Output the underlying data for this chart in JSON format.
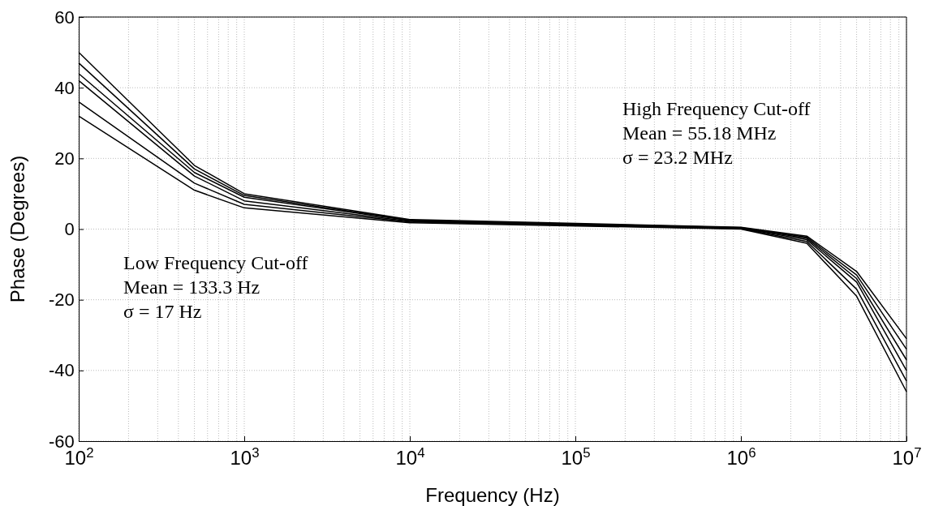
{
  "chart_data": {
    "type": "line",
    "xlabel": "Frequency (Hz)",
    "ylabel": "Phase (Degrees)",
    "log": "x",
    "grid": true,
    "line_style": "solid",
    "marker": "none",
    "x": [
      100,
      500,
      1000,
      10000,
      1000000,
      2500000,
      5000000,
      10000000
    ],
    "xlim": [
      100,
      10000000
    ],
    "ylim": [
      -60,
      60
    ],
    "xticks": [
      {
        "value": 100,
        "label": "10$^{2}$"
      },
      {
        "value": 1000,
        "label": "10$^{3}$"
      },
      {
        "value": 10000,
        "label": "10$^{4}$"
      },
      {
        "value": 100000,
        "label": "10$^{5}$"
      },
      {
        "value": 1000000,
        "label": "10$^{6}$"
      },
      {
        "value": 10000000,
        "label": "10$^{7}$"
      }
    ],
    "yticks": [
      -60,
      -40,
      -20,
      0,
      20,
      40,
      60
    ],
    "series": [
      {
        "color": "#000000",
        "values": [
          50,
          18,
          10,
          2.7,
          0.5,
          -2,
          -12,
          -31
        ]
      },
      {
        "color": "#000000",
        "values": [
          47,
          17,
          9.5,
          2.5,
          0.4,
          -2.3,
          -13,
          -34
        ]
      },
      {
        "color": "#000000",
        "values": [
          44,
          16,
          9,
          2.4,
          0.3,
          -2.6,
          -14,
          -37
        ]
      },
      {
        "color": "#000000",
        "values": [
          42,
          15,
          8,
          2.2,
          0.2,
          -3,
          -15,
          -40
        ]
      },
      {
        "color": "#000000",
        "values": [
          36,
          13,
          7,
          2,
          0.1,
          -3.5,
          -17,
          -43
        ]
      },
      {
        "color": "#000000",
        "values": [
          32,
          11,
          6,
          1.8,
          0,
          -4,
          -19,
          -46
        ]
      }
    ],
    "annotations": [
      "High Frequency Cut-off\nMean = 55.18 MHz\nσ = 23.2 MHz",
      "Low Frequency Cut-off\nMean = 133.3 Hz\nσ = 17 Hz"
    ]
  }
}
